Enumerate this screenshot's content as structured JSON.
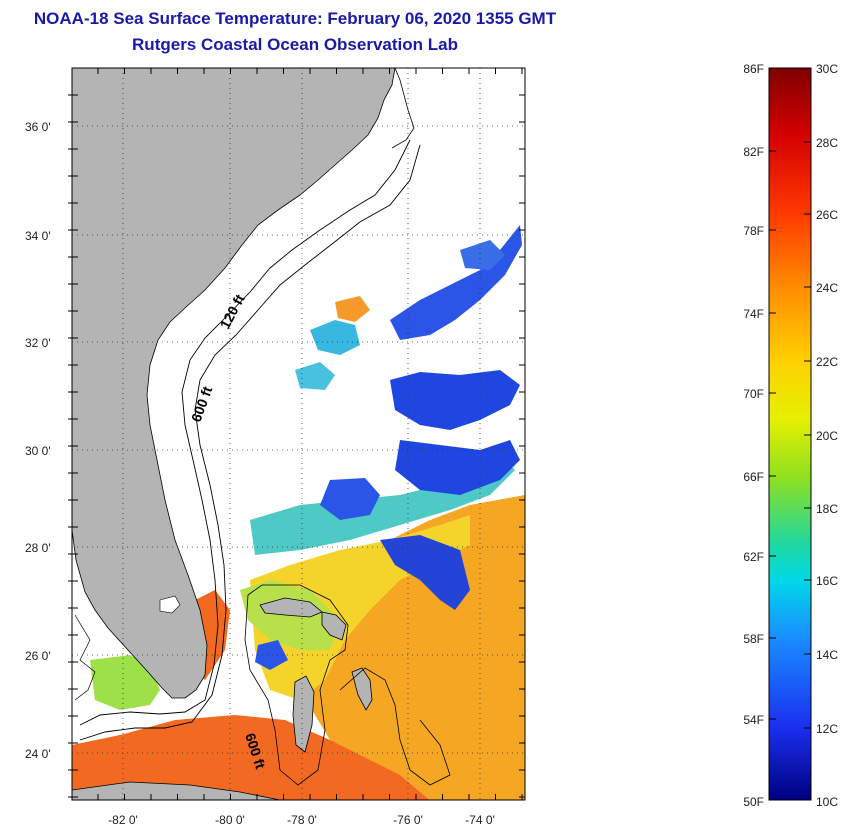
{
  "title_line1": "NOAA-18 Sea Surface Temperature:  February 06, 2020 1355 GMT",
  "title_line2": "Rutgers Coastal Ocean Observation Lab",
  "map": {
    "lon_labels": [
      "-82 0'",
      "-80 0'",
      "-78 0'",
      "-76 0'",
      "-74 0'"
    ],
    "lat_labels": [
      "36 0'",
      "34 0'",
      "32 0'",
      "30 0'",
      "28 0'",
      "26 0'",
      "24 0'"
    ],
    "contour_labels": [
      "120 ft",
      "600 ft",
      "600 ft"
    ],
    "colors": {
      "land": "#b4b4b4",
      "ocean_nodata": "#ffffff"
    }
  },
  "colorbar": {
    "fahrenheit_labels": [
      "86F",
      "82F",
      "78F",
      "74F",
      "70F",
      "66F",
      "62F",
      "58F",
      "54F",
      "50F"
    ],
    "celsius_labels": [
      "30C",
      "28C",
      "26C",
      "24C",
      "22C",
      "20C",
      "18C",
      "16C",
      "14C",
      "12C",
      "10C"
    ],
    "gradient_stops": [
      "#7f0000",
      "#d40000",
      "#ff3a00",
      "#ff8c00",
      "#ffd000",
      "#e6f000",
      "#8ee020",
      "#20d8a0",
      "#00d8e8",
      "#1a8cff",
      "#1a30f0",
      "#00007f"
    ]
  }
}
